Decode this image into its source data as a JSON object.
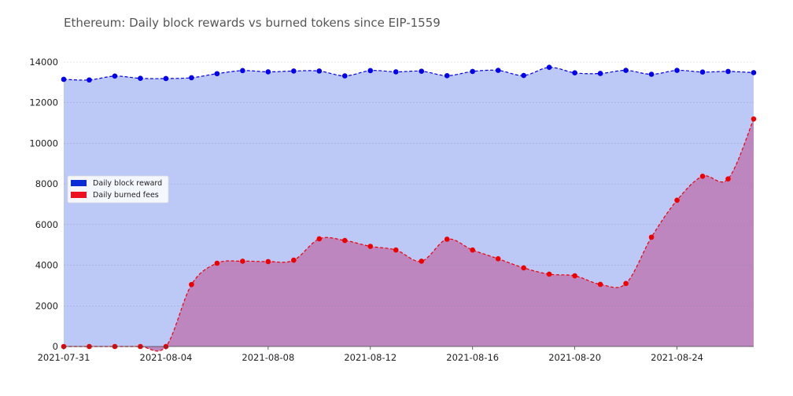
{
  "chart_data": {
    "type": "area",
    "title": "Ethereum: Daily block rewards vs burned tokens since EIP-1559",
    "xlabel": "",
    "ylabel": "",
    "x_tick_labels": [
      "2021-07-31",
      "2021-08-04",
      "2021-08-08",
      "2021-08-12",
      "2021-08-16",
      "2021-08-20",
      "2021-08-24"
    ],
    "y_tick_labels": [
      "0",
      "2000",
      "4000",
      "6000",
      "8000",
      "10000",
      "12000",
      "14000"
    ],
    "ylim": [
      0,
      14000
    ],
    "x": [
      "2021-07-31",
      "2021-08-01",
      "2021-08-02",
      "2021-08-03",
      "2021-08-04",
      "2021-08-05",
      "2021-08-06",
      "2021-08-07",
      "2021-08-08",
      "2021-08-09",
      "2021-08-10",
      "2021-08-11",
      "2021-08-12",
      "2021-08-13",
      "2021-08-14",
      "2021-08-15",
      "2021-08-16",
      "2021-08-17",
      "2021-08-18",
      "2021-08-19",
      "2021-08-20",
      "2021-08-21",
      "2021-08-22",
      "2021-08-23",
      "2021-08-24",
      "2021-08-25",
      "2021-08-26",
      "2021-08-27"
    ],
    "grid": true,
    "legend_position": "center-left",
    "series": [
      {
        "name": "Daily block reward",
        "line_color": "#0000ee",
        "fill_color": "#bcc8f6",
        "legend_color": "#0a2bd6",
        "values": [
          13150,
          13120,
          13310,
          13200,
          13190,
          13230,
          13430,
          13580,
          13520,
          13560,
          13560,
          13320,
          13580,
          13520,
          13550,
          13330,
          13540,
          13590,
          13340,
          13740,
          13470,
          13440,
          13590,
          13400,
          13590,
          13510,
          13540,
          13480
        ]
      },
      {
        "name": "Daily burned fees",
        "line_color": "#ee0000",
        "fill_color": "#bd86bf",
        "legend_color": "#ee1122",
        "values": [
          0,
          0,
          0,
          0,
          0,
          3050,
          4100,
          4200,
          4180,
          4250,
          5300,
          5220,
          4930,
          4750,
          4200,
          5280,
          4750,
          4320,
          3870,
          3560,
          3480,
          3060,
          3100,
          5380,
          7200,
          8380,
          8250,
          11200
        ]
      }
    ]
  }
}
